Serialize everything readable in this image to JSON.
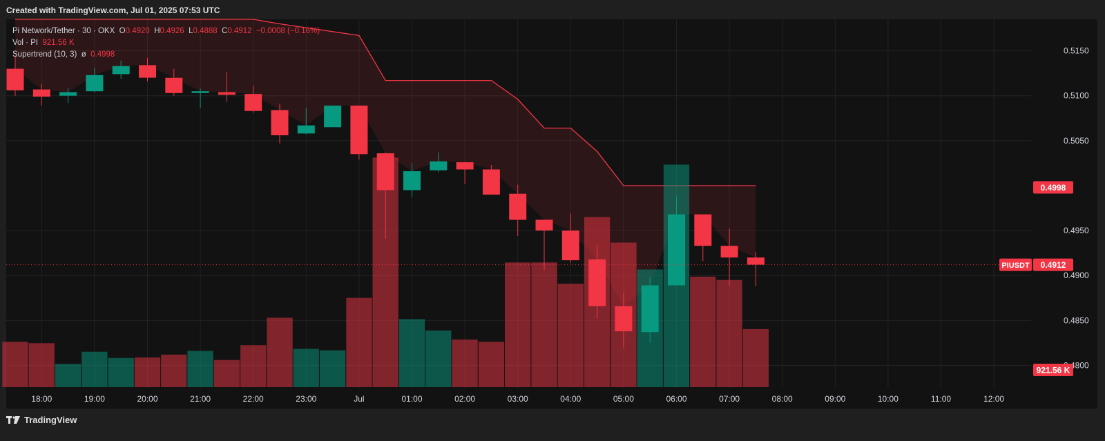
{
  "header": {
    "created_text": "Created with TradingView.com, Jul 01, 2025 07:53 UTC"
  },
  "footer": {
    "brand_label": "TradingView",
    "logo_icon": "tradingview-logo-icon"
  },
  "legend": {
    "symbol": "Pi Network/Tether · 30 · OKX",
    "o_label": "O",
    "o_value": "0.4920",
    "h_label": "H",
    "h_value": "0.4926",
    "l_label": "L",
    "l_value": "0.4888",
    "c_label": "C",
    "c_value": "0.4912",
    "change": "−0.0008 (−0.16%)",
    "vol_label": "Vol · PI",
    "vol_value": "921.56 K",
    "st_label": "Supertrend (10, 3)",
    "st_glyph": "ø",
    "st_value": "0.4998"
  },
  "colors": {
    "up": "#089981",
    "down": "#f23645",
    "background": "#121212",
    "grid": "#222222",
    "text": "#d1d4dc"
  },
  "chart_data": {
    "type": "candlestick",
    "symbol": "PIUSDT",
    "interval": "30",
    "ylim": [
      0.4775,
      0.5185
    ],
    "yticks": [
      "0.5150",
      "0.5100",
      "0.5050",
      "0.4950",
      "0.4900",
      "0.4850",
      "0.4800"
    ],
    "xticks": [
      "18:00",
      "19:00",
      "20:00",
      "21:00",
      "22:00",
      "23:00",
      "Jul",
      "01:00",
      "02:00",
      "03:00",
      "04:00",
      "05:00",
      "06:00",
      "07:00",
      "08:00",
      "09:00",
      "10:00",
      "11:00",
      "12:00"
    ],
    "first_bar_time": "17:30",
    "candles": [
      {
        "t": "17:30",
        "o": 0.513,
        "h": 0.5145,
        "l": 0.51,
        "c": 0.5106
      },
      {
        "t": "18:00",
        "o": 0.5107,
        "h": 0.5113,
        "l": 0.5089,
        "c": 0.5099
      },
      {
        "t": "18:30",
        "o": 0.51,
        "h": 0.5109,
        "l": 0.5092,
        "c": 0.5104
      },
      {
        "t": "19:00",
        "o": 0.5105,
        "h": 0.5131,
        "l": 0.5104,
        "c": 0.5123
      },
      {
        "t": "19:30",
        "o": 0.5124,
        "h": 0.5139,
        "l": 0.5119,
        "c": 0.5133
      },
      {
        "t": "20:00",
        "o": 0.5134,
        "h": 0.5142,
        "l": 0.5116,
        "c": 0.512
      },
      {
        "t": "20:30",
        "o": 0.512,
        "h": 0.513,
        "l": 0.51,
        "c": 0.5103
      },
      {
        "t": "21:00",
        "o": 0.5103,
        "h": 0.5108,
        "l": 0.5086,
        "c": 0.5105
      },
      {
        "t": "21:30",
        "o": 0.5104,
        "h": 0.5126,
        "l": 0.5093,
        "c": 0.5101
      },
      {
        "t": "22:00",
        "o": 0.5102,
        "h": 0.5111,
        "l": 0.5081,
        "c": 0.5083
      },
      {
        "t": "22:30",
        "o": 0.5084,
        "h": 0.5091,
        "l": 0.5047,
        "c": 0.5056
      },
      {
        "t": "23:00",
        "o": 0.5058,
        "h": 0.5086,
        "l": 0.5057,
        "c": 0.5067
      },
      {
        "t": "23:30",
        "o": 0.5065,
        "h": 0.5089,
        "l": 0.5065,
        "c": 0.5089
      },
      {
        "t": "00:00",
        "o": 0.5089,
        "h": 0.5089,
        "l": 0.5029,
        "c": 0.5035
      },
      {
        "t": "00:30",
        "o": 0.5036,
        "h": 0.5037,
        "l": 0.4941,
        "c": 0.4995
      },
      {
        "t": "01:00",
        "o": 0.4995,
        "h": 0.5025,
        "l": 0.4987,
        "c": 0.5016
      },
      {
        "t": "01:30",
        "o": 0.5017,
        "h": 0.5037,
        "l": 0.5015,
        "c": 0.5027
      },
      {
        "t": "02:00",
        "o": 0.5026,
        "h": 0.5026,
        "l": 0.5002,
        "c": 0.5018
      },
      {
        "t": "02:30",
        "o": 0.5018,
        "h": 0.5023,
        "l": 0.499,
        "c": 0.499
      },
      {
        "t": "03:00",
        "o": 0.4991,
        "h": 0.5001,
        "l": 0.4944,
        "c": 0.4962
      },
      {
        "t": "03:30",
        "o": 0.4962,
        "h": 0.4962,
        "l": 0.4906,
        "c": 0.495
      },
      {
        "t": "04:00",
        "o": 0.495,
        "h": 0.4969,
        "l": 0.4914,
        "c": 0.4917
      },
      {
        "t": "04:30",
        "o": 0.4918,
        "h": 0.4934,
        "l": 0.4852,
        "c": 0.4866
      },
      {
        "t": "05:00",
        "o": 0.4866,
        "h": 0.4881,
        "l": 0.482,
        "c": 0.4838
      },
      {
        "t": "05:30",
        "o": 0.4837,
        "h": 0.4898,
        "l": 0.4825,
        "c": 0.4889
      },
      {
        "t": "06:00",
        "o": 0.4889,
        "h": 0.4988,
        "l": 0.4889,
        "c": 0.4968
      },
      {
        "t": "06:30",
        "o": 0.4968,
        "h": 0.4968,
        "l": 0.4916,
        "c": 0.4933
      },
      {
        "t": "07:00",
        "o": 0.4933,
        "h": 0.4952,
        "l": 0.4889,
        "c": 0.492
      },
      {
        "t": "07:30",
        "o": 0.492,
        "h": 0.4926,
        "l": 0.4888,
        "c": 0.4912
      }
    ],
    "volume": [
      160,
      155,
      82,
      125,
      103,
      105,
      115,
      128,
      96,
      148,
      245,
      135,
      130,
      315,
      810,
      240,
      200,
      168,
      160,
      440,
      440,
      365,
      600,
      510,
      415,
      785,
      390,
      378,
      205
    ],
    "volume_panel_max": 1300,
    "supertrend": [
      {
        "t": "17:30",
        "v": 0.5185
      },
      {
        "t": "22:00",
        "v": 0.5185
      },
      {
        "t": "22:30",
        "v": 0.518
      },
      {
        "t": "00:00",
        "v": 0.5167
      },
      {
        "t": "00:30",
        "v": 0.5117
      },
      {
        "t": "02:30",
        "v": 0.5117
      },
      {
        "t": "03:00",
        "v": 0.5096
      },
      {
        "t": "03:30",
        "v": 0.5064
      },
      {
        "t": "04:00",
        "v": 0.5064
      },
      {
        "t": "04:30",
        "v": 0.5038
      },
      {
        "t": "05:00",
        "v": 0.5
      },
      {
        "t": "07:30",
        "v": 0.5
      }
    ],
    "price_badges": [
      {
        "label": "",
        "value": "0.4998",
        "price": 0.4998
      },
      {
        "label": "PIUSDT",
        "value": "0.4912",
        "price": 0.4912
      }
    ],
    "volume_badge": "921.56 K",
    "last_price": 0.4912
  }
}
